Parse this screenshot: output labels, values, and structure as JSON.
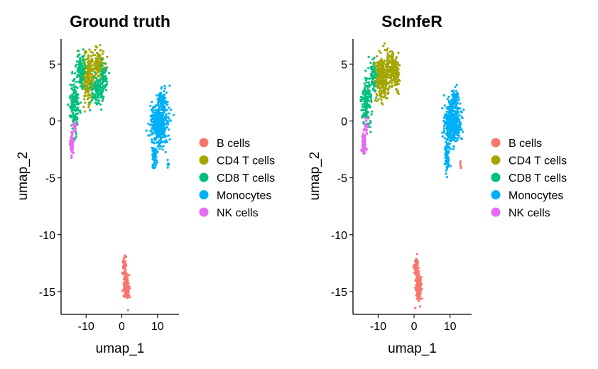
{
  "chart_data": [
    {
      "type": "scatter",
      "title": "Ground truth",
      "xlabel": "umap_1",
      "ylabel": "umap_2",
      "xticks": [
        -10,
        0,
        10
      ],
      "yticks": [
        5,
        0,
        -5,
        -10,
        -15
      ],
      "xlim": [
        -17,
        16
      ],
      "ylim": [
        -17,
        7.2
      ],
      "grid": false,
      "legend_position": "right",
      "legend": [
        "B cells",
        "CD4 T cells",
        "CD8 T cells",
        "Monocytes",
        "NK cells"
      ],
      "series": [
        {
          "name": "B cells",
          "color": "#F8766D",
          "clusters": [
            {
              "x": 0.7,
              "y": -13.0,
              "sx": 0.35,
              "sy": 0.6,
              "n": 60
            },
            {
              "x": 1.3,
              "y": -14.6,
              "sx": 0.45,
              "sy": 0.7,
              "n": 140
            }
          ]
        },
        {
          "name": "CD4 T cells",
          "color": "#A3A500",
          "clusters": [
            {
              "x": -9.5,
              "y": 3.8,
              "sx": 1.3,
              "sy": 1.3,
              "n": 230
            },
            {
              "x": -6.5,
              "y": 4.8,
              "sx": 1.1,
              "sy": 0.9,
              "n": 130
            }
          ]
        },
        {
          "name": "CD8 T cells",
          "color": "#00BF7D",
          "clusters": [
            {
              "x": -13.2,
              "y": 1.5,
              "sx": 0.9,
              "sy": 1.6,
              "n": 150
            },
            {
              "x": -11.5,
              "y": 4.3,
              "sx": 0.9,
              "sy": 1.0,
              "n": 90
            },
            {
              "x": -6.8,
              "y": 2.6,
              "sx": 1.2,
              "sy": 0.9,
              "n": 110
            },
            {
              "x": -5.0,
              "y": 4.0,
              "sx": 0.7,
              "sy": 0.8,
              "n": 60
            }
          ]
        },
        {
          "name": "Monocytes",
          "color": "#00B0F6",
          "clusters": [
            {
              "x": 10.7,
              "y": -0.2,
              "sx": 1.6,
              "sy": 1.2,
              "n": 420
            },
            {
              "x": 11.2,
              "y": 1.9,
              "sx": 0.7,
              "sy": 0.5,
              "n": 70
            },
            {
              "x": 9.2,
              "y": -3.3,
              "sx": 0.45,
              "sy": 0.9,
              "n": 60
            },
            {
              "x": 13.0,
              "y": -3.9,
              "sx": 0.15,
              "sy": 0.25,
              "n": 6
            }
          ]
        },
        {
          "name": "NK cells",
          "color": "#E76BF3",
          "clusters": [
            {
              "x": -14.0,
              "y": -2.0,
              "sx": 0.35,
              "sy": 0.6,
              "n": 90
            },
            {
              "x": -13.2,
              "y": -0.6,
              "sx": 0.4,
              "sy": 0.4,
              "n": 20
            }
          ]
        }
      ]
    },
    {
      "type": "scatter",
      "title": "ScInfeR",
      "xlabel": "umap_1",
      "ylabel": "umap_2",
      "xticks": [
        -10,
        0,
        10
      ],
      "yticks": [
        5,
        0,
        -5,
        -10,
        -15
      ],
      "xlim": [
        -17,
        16
      ],
      "ylim": [
        -17,
        7.2
      ],
      "grid": false,
      "legend_position": "right",
      "legend": [
        "B cells",
        "CD4 T cells",
        "CD8 T cells",
        "Monocytes",
        "NK cells"
      ],
      "series": [
        {
          "name": "B cells",
          "color": "#F8766D",
          "clusters": [
            {
              "x": 0.7,
              "y": -13.0,
              "sx": 0.35,
              "sy": 0.6,
              "n": 60
            },
            {
              "x": 1.3,
              "y": -14.6,
              "sx": 0.45,
              "sy": 0.7,
              "n": 140
            },
            {
              "x": 13.0,
              "y": -3.9,
              "sx": 0.15,
              "sy": 0.25,
              "n": 6
            }
          ]
        },
        {
          "name": "CD4 T cells",
          "color": "#A3A500",
          "clusters": [
            {
              "x": -9.0,
              "y": 3.8,
              "sx": 1.4,
              "sy": 1.3,
              "n": 260
            },
            {
              "x": -6.2,
              "y": 4.6,
              "sx": 1.2,
              "sy": 0.9,
              "n": 170
            },
            {
              "x": -4.8,
              "y": 3.8,
              "sx": 0.6,
              "sy": 0.8,
              "n": 50
            }
          ]
        },
        {
          "name": "CD8 T cells",
          "color": "#00BF7D",
          "clusters": [
            {
              "x": -13.2,
              "y": 1.5,
              "sx": 0.9,
              "sy": 1.6,
              "n": 150
            },
            {
              "x": -11.5,
              "y": 4.0,
              "sx": 0.7,
              "sy": 1.0,
              "n": 60
            }
          ]
        },
        {
          "name": "Monocytes",
          "color": "#00B0F6",
          "clusters": [
            {
              "x": 10.7,
              "y": -0.2,
              "sx": 1.6,
              "sy": 1.2,
              "n": 420
            },
            {
              "x": 11.2,
              "y": 1.9,
              "sx": 0.7,
              "sy": 0.5,
              "n": 70
            },
            {
              "x": 9.2,
              "y": -3.3,
              "sx": 0.45,
              "sy": 0.9,
              "n": 60
            }
          ]
        },
        {
          "name": "NK cells",
          "color": "#E76BF3",
          "clusters": [
            {
              "x": -14.0,
              "y": -2.0,
              "sx": 0.35,
              "sy": 0.6,
              "n": 90
            },
            {
              "x": -13.2,
              "y": -0.6,
              "sx": 0.4,
              "sy": 0.4,
              "n": 20
            }
          ]
        }
      ]
    }
  ]
}
